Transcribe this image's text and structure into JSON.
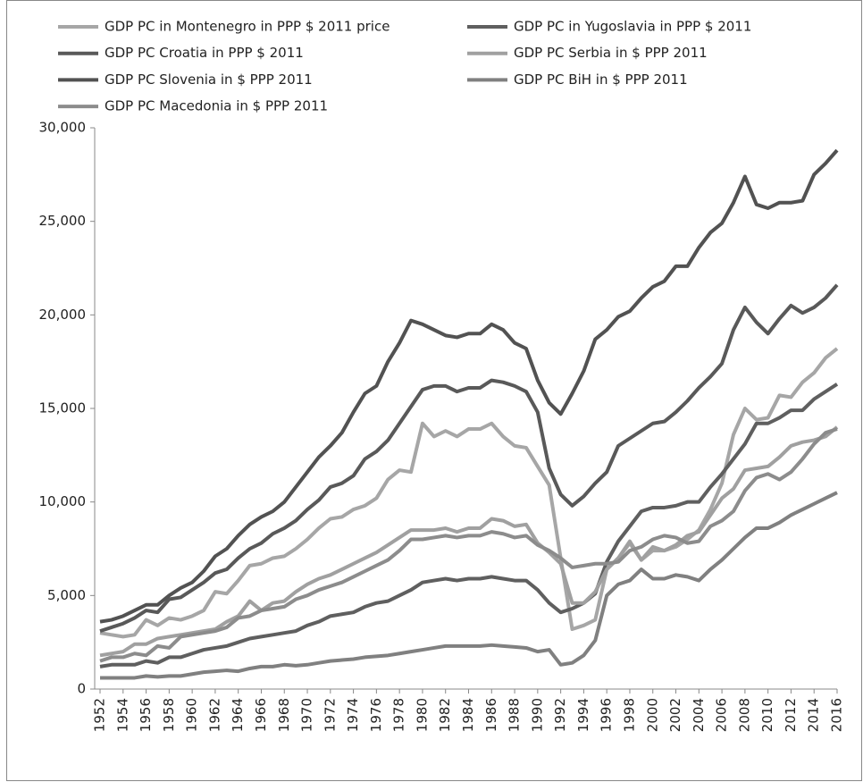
{
  "chart_data": {
    "type": "line",
    "x": [
      1952,
      1953,
      1954,
      1955,
      1956,
      1957,
      1958,
      1959,
      1960,
      1961,
      1962,
      1963,
      1964,
      1965,
      1966,
      1967,
      1968,
      1969,
      1970,
      1971,
      1972,
      1973,
      1974,
      1975,
      1976,
      1977,
      1978,
      1979,
      1980,
      1981,
      1982,
      1983,
      1984,
      1985,
      1986,
      1987,
      1988,
      1989,
      1990,
      1991,
      1992,
      1993,
      1994,
      1995,
      1996,
      1997,
      1998,
      1999,
      2000,
      2001,
      2002,
      2003,
      2004,
      2005,
      2006,
      2007,
      2008,
      2009,
      2010,
      2011,
      2012,
      2013,
      2014,
      2015,
      2016
    ],
    "xlim": [
      1952,
      2016
    ],
    "xticks": [
      1952,
      1954,
      1956,
      1958,
      1960,
      1962,
      1964,
      1966,
      1968,
      1970,
      1972,
      1974,
      1976,
      1978,
      1980,
      1982,
      1984,
      1986,
      1988,
      1990,
      1992,
      1994,
      1996,
      1998,
      2000,
      2002,
      2004,
      2006,
      2008,
      2010,
      2012,
      2014,
      2016
    ],
    "ylim": [
      0,
      30000
    ],
    "yticks": [
      0,
      {
        "value": 5000,
        "label": "5,000"
      },
      {
        "value": 10000,
        "label": "10,000"
      },
      {
        "value": 15000,
        "label": "15,000"
      },
      {
        "value": 20000,
        "label": "20,000"
      },
      {
        "value": 25000,
        "label": "25,000"
      },
      {
        "value": 30000,
        "label": "30,000"
      }
    ],
    "series": [
      {
        "name": "GDP PC in Montenegro in PPP $ 2011 price",
        "color": "#a6a6a6",
        "values": [
          3000,
          2900,
          2800,
          2900,
          3700,
          3400,
          3800,
          3700,
          3900,
          4200,
          5200,
          5100,
          5800,
          6600,
          6700,
          7000,
          7100,
          7500,
          8000,
          8600,
          9100,
          9200,
          9600,
          9800,
          10200,
          11200,
          11700,
          11600,
          14200,
          13500,
          13800,
          13500,
          13900,
          13900,
          14200,
          13500,
          13000,
          12900,
          11900,
          10900,
          7000,
          3200,
          3400,
          3700,
          6400,
          7000,
          7800,
          6900,
          7400,
          7400,
          7600,
          8000,
          8500,
          9600,
          11000,
          13600,
          15000,
          14400,
          14500,
          15700,
          15600,
          16400,
          16900,
          17700,
          18200
        ]
      },
      {
        "name": "GDP PC in Yugoslavia in PPP $ 2011",
        "color": "#5f5f5f",
        "values": [
          1200,
          1300,
          1300,
          1300,
          1500,
          1400,
          1700,
          1700,
          1900,
          2100,
          2200,
          2300,
          2500,
          2700,
          2800,
          2900,
          3000,
          3100,
          3400,
          3600,
          3900,
          4000,
          4100,
          4400,
          4600,
          4700,
          5000,
          5300,
          5700,
          5800,
          5900,
          5800,
          5900,
          5900,
          6000,
          5900,
          5800,
          5800,
          5300,
          4600,
          4100,
          4300,
          4600,
          5100,
          6800,
          7900,
          8700,
          9500,
          9700,
          9700,
          9800,
          10000,
          10000,
          10800,
          11500,
          12300,
          13100,
          14200,
          14200,
          14500,
          14900,
          14900,
          15500,
          15900,
          16300
        ]
      },
      {
        "name": "GDP PC Croatia in PPP $ 2011",
        "color": "#595959",
        "values": [
          3100,
          3300,
          3500,
          3800,
          4200,
          4100,
          4800,
          4900,
          5300,
          5700,
          6200,
          6400,
          7000,
          7500,
          7800,
          8300,
          8600,
          9000,
          9600,
          10100,
          10800,
          11000,
          11400,
          12300,
          12700,
          13300,
          14200,
          15100,
          16000,
          16200,
          16200,
          15900,
          16100,
          16100,
          16500,
          16400,
          16200,
          15900,
          14800,
          11800,
          10400,
          9800,
          10300,
          11000,
          11600,
          13000,
          13400,
          13800,
          14200,
          14300,
          14800,
          15400,
          16100,
          16700,
          17400,
          19200,
          20400,
          19600,
          19000,
          19800,
          20500,
          20100,
          20400,
          20900,
          21600
        ]
      },
      {
        "name": "GDP PC Serbia in $ PPP 2011",
        "color": "#a0a0a0",
        "values": [
          1800,
          1900,
          2000,
          2400,
          2400,
          2700,
          2800,
          2900,
          3000,
          3100,
          3200,
          3600,
          3900,
          4700,
          4200,
          4600,
          4700,
          5200,
          5600,
          5900,
          6100,
          6400,
          6700,
          7000,
          7300,
          7700,
          8100,
          8500,
          8500,
          8500,
          8600,
          8400,
          8600,
          8600,
          9100,
          9000,
          8700,
          8800,
          7800,
          7300,
          6700,
          4600,
          4600,
          5200,
          6400,
          7000,
          7900,
          6900,
          7600,
          7400,
          7700,
          8200,
          8400,
          9300,
          10200,
          10700,
          11700,
          11800,
          11900,
          12400,
          13000,
          13200,
          13300,
          13500,
          14000
        ]
      },
      {
        "name": "GDP PC Slovenia in $ PPP 2011",
        "color": "#525252",
        "values": [
          3600,
          3700,
          3900,
          4200,
          4500,
          4500,
          5000,
          5400,
          5700,
          6300,
          7100,
          7500,
          8200,
          8800,
          9200,
          9500,
          10000,
          10800,
          11600,
          12400,
          13000,
          13700,
          14800,
          15800,
          16200,
          17500,
          18500,
          19700,
          19500,
          19200,
          18900,
          18800,
          19000,
          19000,
          19500,
          19200,
          18500,
          18200,
          16500,
          15300,
          14700,
          15800,
          17000,
          18700,
          19200,
          19900,
          20200,
          20900,
          21500,
          21800,
          22600,
          22600,
          23600,
          24400,
          24900,
          26000,
          27400,
          25900,
          25700,
          26000,
          26000,
          26100,
          27500,
          28100,
          28800
        ]
      },
      {
        "name": "GDP PC BiH in $ PPP 2011",
        "color": "#808080",
        "values": [
          600,
          600,
          600,
          600,
          700,
          650,
          700,
          700,
          800,
          900,
          950,
          1000,
          950,
          1100,
          1200,
          1200,
          1300,
          1250,
          1300,
          1400,
          1500,
          1550,
          1600,
          1700,
          1750,
          1800,
          1900,
          2000,
          2100,
          2200,
          2300,
          2300,
          2300,
          2300,
          2350,
          2300,
          2250,
          2200,
          2000,
          2100,
          1300,
          1400,
          1800,
          2600,
          5000,
          5600,
          5800,
          6400,
          5900,
          5900,
          6100,
          6000,
          5800,
          6400,
          6900,
          7500,
          8100,
          8600,
          8600,
          8900,
          9300,
          9600,
          9900,
          10200,
          10500
        ]
      },
      {
        "name": "GDP PC Macedonia in $ PPP 2011",
        "color": "#8c8c8c",
        "values": [
          1500,
          1700,
          1700,
          1900,
          1800,
          2300,
          2200,
          2800,
          2900,
          3000,
          3100,
          3300,
          3800,
          3900,
          4200,
          4300,
          4400,
          4800,
          5000,
          5300,
          5500,
          5700,
          6000,
          6300,
          6600,
          6900,
          7400,
          8000,
          8000,
          8100,
          8200,
          8100,
          8200,
          8200,
          8400,
          8300,
          8100,
          8200,
          7700,
          7400,
          7000,
          6500,
          6600,
          6700,
          6700,
          6800,
          7400,
          7600,
          8000,
          8200,
          8100,
          7800,
          7900,
          8700,
          9000,
          9500,
          10600,
          11300,
          11500,
          11200,
          11600,
          12300,
          13100,
          13700,
          13900
        ]
      }
    ]
  }
}
